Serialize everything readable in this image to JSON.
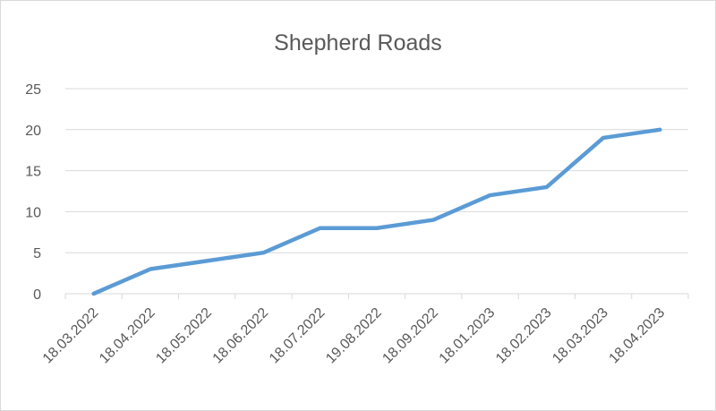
{
  "chart_data": {
    "type": "line",
    "title": "Shepherd Roads",
    "xlabel": "",
    "ylabel": "",
    "categories": [
      "18.03.2022",
      "18.04.2022",
      "18.05.2022",
      "18.06.2022",
      "18.07.2022",
      "19.08.2022",
      "18.09.2022",
      "18.01.2023",
      "18.02.2023",
      "18.03.2023",
      "18.04.2023"
    ],
    "y_ticks": [
      "0",
      "5",
      "10",
      "15",
      "20",
      "25"
    ],
    "ylim": [
      0,
      25
    ],
    "grid": true,
    "legend": "none",
    "series": [
      {
        "values": [
          0,
          3,
          4,
          5,
          8,
          8,
          9,
          12,
          13,
          19,
          20
        ],
        "color": "#5b9bd5"
      }
    ]
  }
}
